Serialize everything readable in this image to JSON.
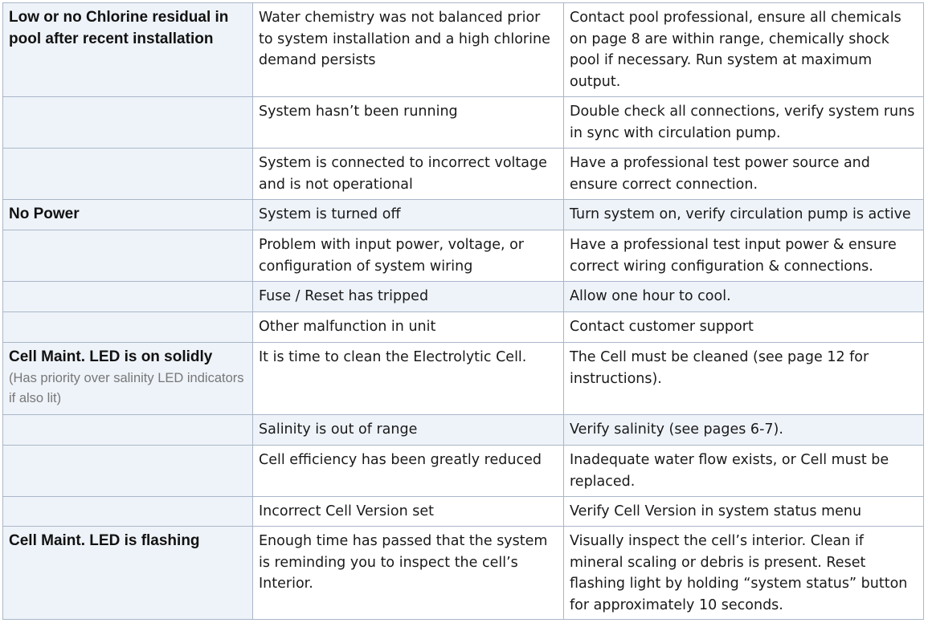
{
  "rows": [
    {
      "problem": "Low or no Chlorine residual in pool after recent installation",
      "cause": "Water chemistry was not balanced prior to system installation and a high chlorine demand persists",
      "solution": "Contact pool professional, ensure all chemicals on page 8 are within range, chemically shock pool if necessary. Run system at maximum output."
    },
    {
      "cause": "System hasn’t been running",
      "solution": "Double check all connections, verify system runs in sync with circulation pump."
    },
    {
      "cause": "System is connected to incorrect voltage and is not operational",
      "solution": "Have a professional test power source and ensure correct connection."
    },
    {
      "problem": "No Power",
      "cause": "System is turned off",
      "solution": "Turn system on, verify circulation pump is active"
    },
    {
      "cause": "Problem with input power, voltage, or configuration of system wiring",
      "solution": "Have a professional test input power & ensure correct wiring configuration & connections."
    },
    {
      "cause": "Fuse / Reset has tripped",
      "solution": "Allow one hour to cool."
    },
    {
      "cause": "Other malfunction in unit",
      "solution": "Contact customer support"
    },
    {
      "problem": "Cell Maint. LED is on solidly",
      "problem_note": "(Has priority over salinity LED indicators if also lit)",
      "cause": "It is time to clean the Electrolytic Cell.",
      "solution": "The Cell must be cleaned (see page 12 for instructions)."
    },
    {
      "cause": "Salinity is out of range",
      "solution": "Verify salinity (see pages 6-7)."
    },
    {
      "cause": "Cell efficiency has been greatly reduced",
      "solution": "Inadequate water flow exists, or Cell must be replaced."
    },
    {
      "cause": "Incorrect Cell Version set",
      "solution": "Verify Cell Version in system status menu"
    },
    {
      "problem": "Cell Maint. LED is flashing",
      "cause": "Enough time has passed that the system is reminding you to inspect the cell’s Interior.",
      "solution": "Visually inspect the cell’s interior. Clean if mineral scaling or debris is present. Reset flashing light by holding “system status” button for approximately 10 seconds."
    }
  ]
}
